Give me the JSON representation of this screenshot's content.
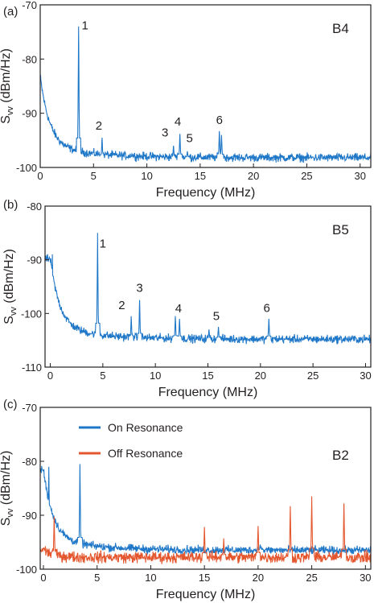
{
  "chart_data": [
    {
      "type": "line",
      "panel_label": "(a)",
      "tag": "B4",
      "xlabel": "Frequency (MHz)",
      "ylabel": "S_vv (dBm/Hz)",
      "xlim": [
        0,
        31
      ],
      "ylim": [
        -100,
        -70
      ],
      "xticks": [
        0,
        5,
        10,
        15,
        20,
        25,
        30
      ],
      "yticks": [
        -100,
        -90,
        -80,
        -70
      ],
      "baseline": -98.2,
      "series": [
        {
          "color": "#1f77c8",
          "peaks": [
            {
              "x": 0.3,
              "y": -87.0
            },
            {
              "x": 3.6,
              "y": -74.0
            },
            {
              "x": 5.8,
              "y": -94.5
            },
            {
              "x": 8.6,
              "y": -97.5
            },
            {
              "x": 12.5,
              "y": -96.0
            },
            {
              "x": 13.1,
              "y": -93.8
            },
            {
              "x": 13.8,
              "y": -97.0
            },
            {
              "x": 16.8,
              "y": -93.3
            },
            {
              "x": 17.0,
              "y": -94.0
            }
          ]
        }
      ],
      "peak_labels": [
        {
          "text": "1",
          "x": 4.2,
          "y": -74.5
        },
        {
          "text": "2",
          "x": 5.5,
          "y": -93.0
        },
        {
          "text": "3",
          "x": 11.7,
          "y": -94.3
        },
        {
          "text": "4",
          "x": 12.9,
          "y": -92.3
        },
        {
          "text": "5",
          "x": 14.0,
          "y": -95.3
        },
        {
          "text": "6",
          "x": 16.8,
          "y": -92.0
        }
      ]
    },
    {
      "type": "line",
      "panel_label": "(b)",
      "tag": "B5",
      "xlabel": "Frequency (MHz)",
      "ylabel": "S_vv (dBm/Hz)",
      "xlim": [
        -0.5,
        30.5
      ],
      "ylim": [
        -110,
        -80
      ],
      "xticks": [
        0,
        5,
        10,
        15,
        20,
        25,
        30
      ],
      "yticks": [
        -110,
        -100,
        -90,
        -80
      ],
      "baseline": -104.8,
      "series": [
        {
          "color": "#1f77c8",
          "peaks": [
            {
              "x": 0.2,
              "y": -89.0
            },
            {
              "x": 0.5,
              "y": -95.5
            },
            {
              "x": 4.5,
              "y": -85.0
            },
            {
              "x": 7.7,
              "y": -100.5
            },
            {
              "x": 8.5,
              "y": -97.5
            },
            {
              "x": 11.9,
              "y": -100.5
            },
            {
              "x": 12.3,
              "y": -101.0
            },
            {
              "x": 15.1,
              "y": -103.0
            },
            {
              "x": 16.0,
              "y": -102.5
            },
            {
              "x": 20.8,
              "y": -101.0
            }
          ]
        }
      ],
      "peak_labels": [
        {
          "text": "1",
          "x": 5.0,
          "y": -87.7
        },
        {
          "text": "2",
          "x": 6.8,
          "y": -99.2
        },
        {
          "text": "3",
          "x": 8.5,
          "y": -96.0
        },
        {
          "text": "4",
          "x": 12.2,
          "y": -99.8
        },
        {
          "text": "5",
          "x": 15.8,
          "y": -101.2
        },
        {
          "text": "6",
          "x": 20.6,
          "y": -99.7
        }
      ]
    },
    {
      "type": "line",
      "panel_label": "(c)",
      "tag": "B2",
      "xlabel": "Frequency (MHz)",
      "ylabel": "S_vv (dBm/Hz)",
      "xlim": [
        -0.3,
        30.5
      ],
      "ylim": [
        -100,
        -70
      ],
      "xticks": [
        0,
        5,
        10,
        15,
        20,
        25,
        30
      ],
      "yticks": [
        -100,
        -90,
        -80,
        -70
      ],
      "legend": "top-left",
      "series": [
        {
          "name": "On Resonance",
          "color": "#1f77c8",
          "baseline": -96.5,
          "peaks": [
            {
              "x": 0.5,
              "y": -81.0
            },
            {
              "x": 3.4,
              "y": -80.5
            },
            {
              "x": 6.8,
              "y": -95.8
            },
            {
              "x": 20.2,
              "y": -95.5
            }
          ]
        },
        {
          "name": "Off Resonance",
          "color": "#e4572e",
          "baseline": -97.8,
          "peaks": [
            {
              "x": 1.0,
              "y": -90.3
            },
            {
              "x": 15.0,
              "y": -92.2
            },
            {
              "x": 16.8,
              "y": -94.3
            },
            {
              "x": 20.0,
              "y": -92.0
            },
            {
              "x": 23.0,
              "y": -88.3
            },
            {
              "x": 25.0,
              "y": -86.5
            },
            {
              "x": 28.0,
              "y": -87.8
            }
          ]
        }
      ]
    }
  ]
}
